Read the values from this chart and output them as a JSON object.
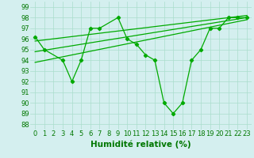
{
  "zigzag_x": [
    0,
    1,
    3,
    4,
    5,
    6,
    7,
    9,
    10,
    11,
    12,
    13,
    14,
    15,
    16,
    17,
    18,
    19,
    20,
    21,
    22,
    23
  ],
  "zigzag_y": [
    96.2,
    95.0,
    94.0,
    92.0,
    94.0,
    97.0,
    97.0,
    98.0,
    96.0,
    95.5,
    94.5,
    94.0,
    90.0,
    89.0,
    90.0,
    94.0,
    95.0,
    97.0,
    97.0,
    98.0,
    98.0,
    98.0
  ],
  "trend1_x": [
    0,
    23
  ],
  "trend1_y": [
    93.8,
    97.8
  ],
  "trend2_x": [
    0,
    23
  ],
  "trend2_y": [
    94.8,
    98.0
  ],
  "trend3_x": [
    0,
    23
  ],
  "trend3_y": [
    95.8,
    98.2
  ],
  "xlabel": "Humidité relative (%)",
  "xlim": [
    -0.5,
    23.5
  ],
  "ylim": [
    87.5,
    99.5
  ],
  "yticks": [
    88,
    89,
    90,
    91,
    92,
    93,
    94,
    95,
    96,
    97,
    98,
    99
  ],
  "xticks": [
    0,
    1,
    2,
    3,
    4,
    5,
    6,
    7,
    8,
    9,
    10,
    11,
    12,
    13,
    14,
    15,
    16,
    17,
    18,
    19,
    20,
    21,
    22,
    23
  ],
  "xtick_labels": [
    "0",
    "1",
    "2",
    "3",
    "4",
    "5",
    "6",
    "7",
    "8",
    "9",
    "10",
    "11",
    "12",
    "13",
    "14",
    "15",
    "16",
    "17",
    "18",
    "19",
    "20",
    "21",
    "22",
    "23"
  ],
  "bg_color": "#d4efef",
  "grid_color": "#aaddcc",
  "line_color": "#00aa00",
  "xlabel_color": "#007700",
  "xlabel_fontsize": 7.5,
  "tick_fontsize": 6,
  "tick_color": "#007700"
}
